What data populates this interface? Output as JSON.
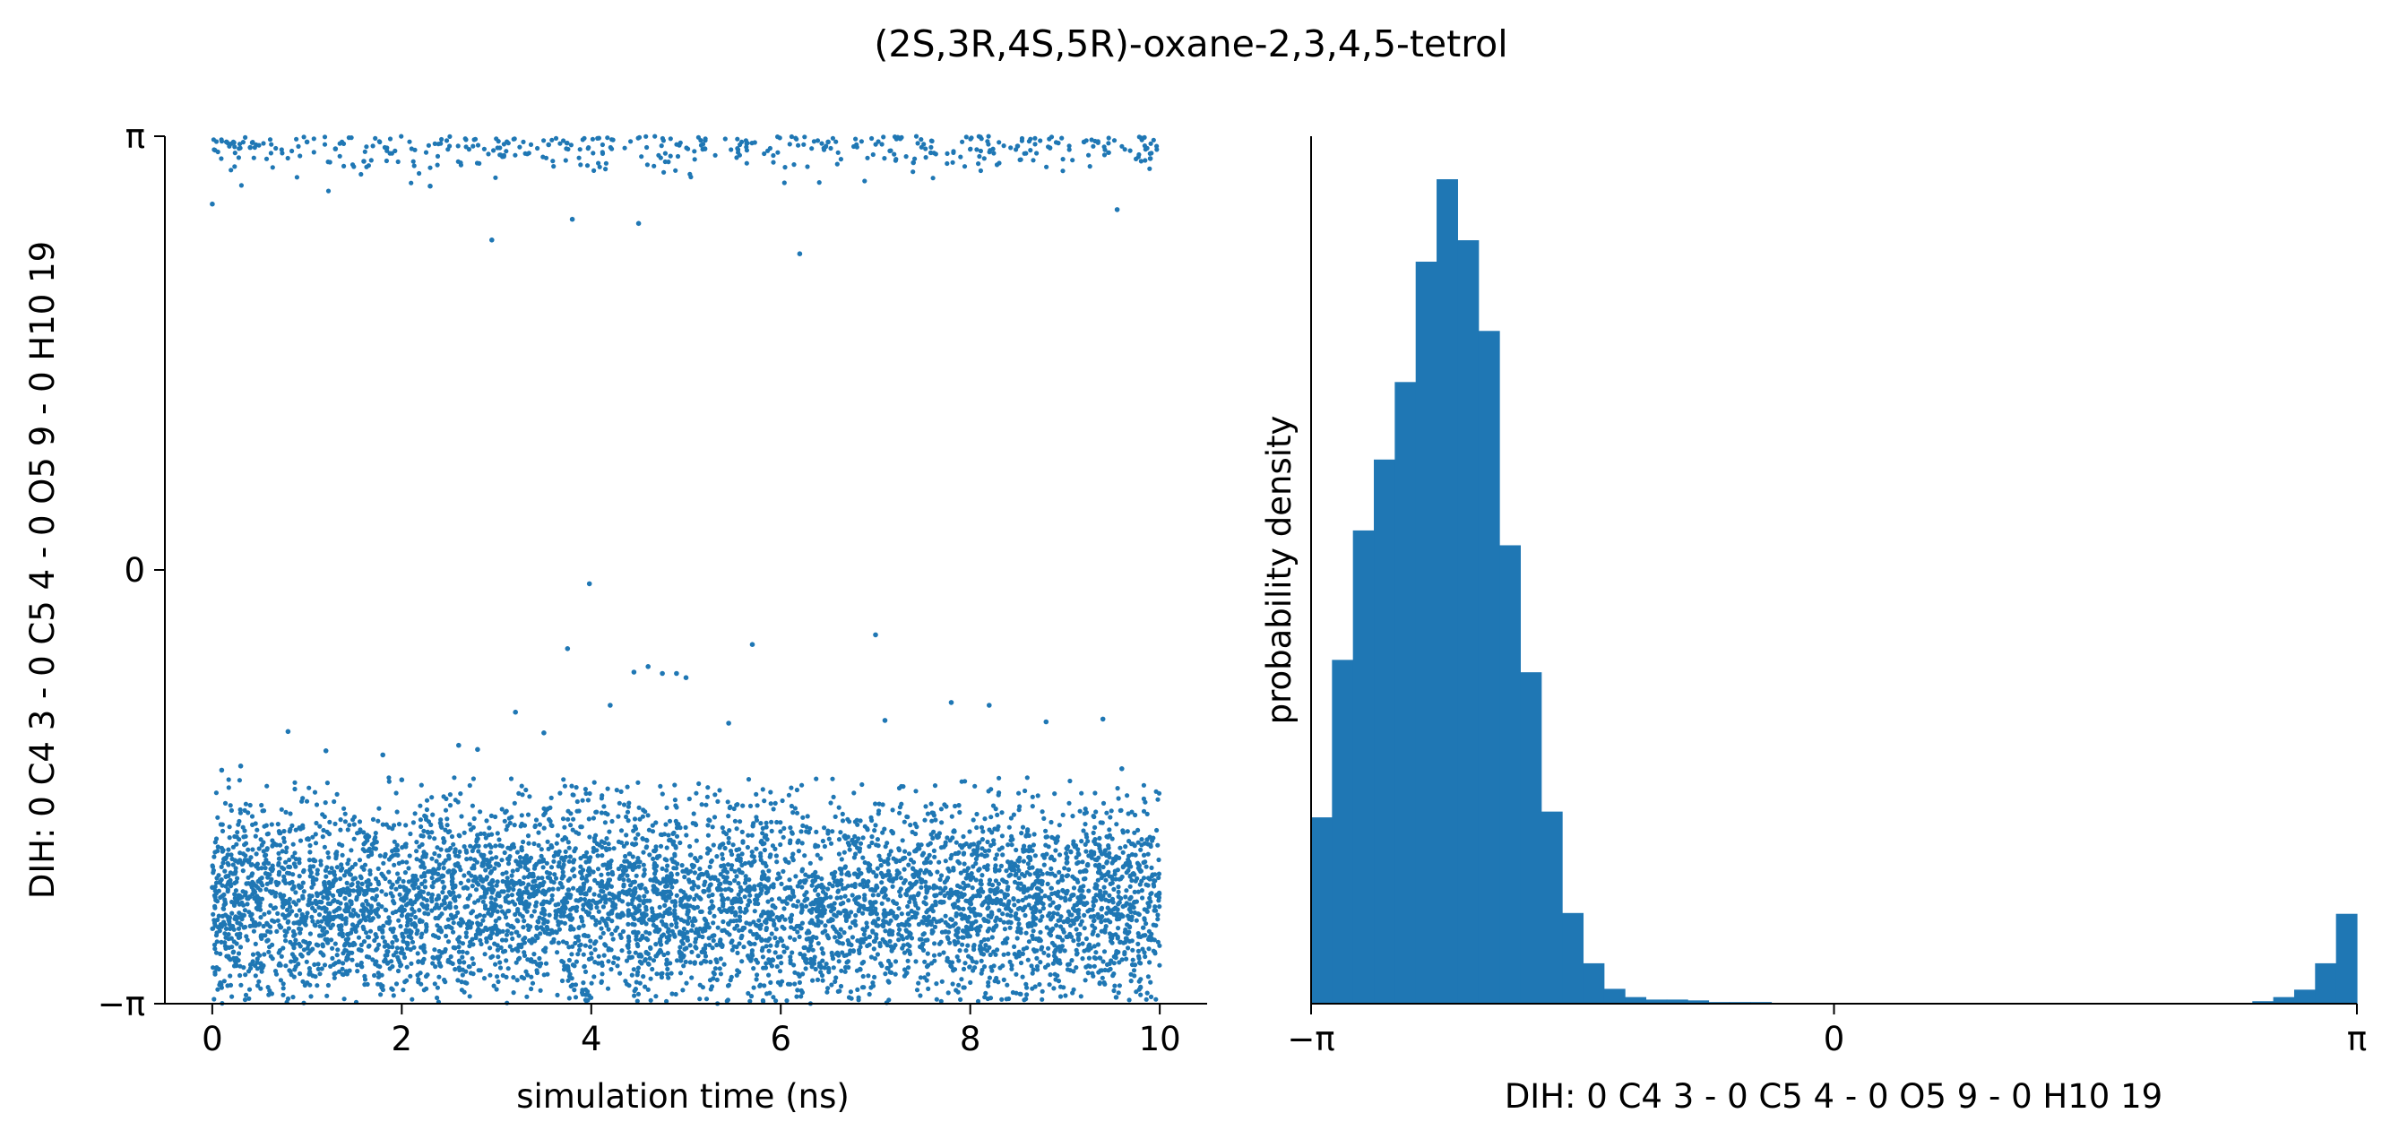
{
  "figure": {
    "title": "(2S,3R,4S,5R)-oxane-2,3,4,5-tetrol",
    "accent_color": "#1f77b4",
    "axis_color": "#000000"
  },
  "chart_data": [
    {
      "type": "scatter",
      "xlabel": "simulation time (ns)",
      "ylabel": "DIH:  0 C4 3 -  0 C5 4 -  0 O5 9 -  0 H10 19",
      "xlim": [
        -0.5,
        10.5
      ],
      "ylim": [
        -3.14159,
        3.14159
      ],
      "x_ticks": [
        0,
        2,
        4,
        6,
        8,
        10
      ],
      "x_tick_labels": [
        "0",
        "2",
        "4",
        "6",
        "8",
        "10"
      ],
      "y_ticks": [
        -3.14159,
        0,
        3.14159
      ],
      "y_tick_labels": [
        "−π",
        "0",
        "π"
      ],
      "grid": false,
      "series": [
        {
          "color": "#1f77b4",
          "points_sampled": [
            [
              0.0,
              -2.3
            ],
            [
              0.0,
              2.65
            ],
            [
              0.1,
              -1.45
            ],
            [
              0.15,
              3.1
            ],
            [
              0.3,
              -1.42
            ],
            [
              0.4,
              3.06
            ],
            [
              0.8,
              -1.17
            ],
            [
              1.0,
              3.1
            ],
            [
              1.2,
              -1.31
            ],
            [
              1.3,
              3.05
            ],
            [
              1.6,
              2.96
            ],
            [
              1.8,
              -1.34
            ],
            [
              2.0,
              -1.52
            ],
            [
              2.3,
              2.78
            ],
            [
              2.6,
              -1.27
            ],
            [
              2.8,
              -1.3
            ],
            [
              2.95,
              2.39
            ],
            [
              3.2,
              -1.03
            ],
            [
              3.5,
              -1.18
            ],
            [
              3.55,
              3.08
            ],
            [
              3.75,
              -0.57
            ],
            [
              3.8,
              2.54
            ],
            [
              3.98,
              -0.1
            ],
            [
              4.2,
              -0.98
            ],
            [
              4.45,
              -0.74
            ],
            [
              4.5,
              2.51
            ],
            [
              4.6,
              -0.7
            ],
            [
              4.75,
              -0.75
            ],
            [
              4.9,
              -0.75
            ],
            [
              5.0,
              -0.78
            ],
            [
              5.2,
              3.05
            ],
            [
              5.45,
              -1.11
            ],
            [
              5.7,
              -0.54
            ],
            [
              6.2,
              2.29
            ],
            [
              6.5,
              3.1
            ],
            [
              7.0,
              -0.47
            ],
            [
              7.1,
              -1.09
            ],
            [
              7.4,
              2.95
            ],
            [
              7.8,
              -0.96
            ],
            [
              8.2,
              -0.98
            ],
            [
              8.5,
              3.07
            ],
            [
              8.8,
              -1.1
            ],
            [
              9.2,
              3.1
            ],
            [
              9.4,
              -1.08
            ],
            [
              9.55,
              2.61
            ],
            [
              9.6,
              -1.44
            ],
            [
              9.9,
              2.98
            ]
          ],
          "main_band": {
            "x_range": [
              0,
              10
            ],
            "y_mean": -2.42,
            "y_spread_approx": 0.38,
            "y_min": -3.14159,
            "y_max": -1.5
          },
          "note_points": "dense band of ~10000 samples between -π and about -1.5 rad; sparse points near +π"
        }
      ]
    },
    {
      "type": "histogram",
      "xlabel": "DIH:  0 C4 3 -  0 C5 4 -  0 O5 9 -  0 H10 19",
      "ylabel": "probability density",
      "xlim": [
        -3.14159,
        3.14159
      ],
      "x_ticks": [
        -3.14159,
        0,
        3.14159
      ],
      "x_tick_labels": [
        "−π",
        "0",
        "π"
      ],
      "grid": false,
      "bins": 50,
      "values": [
        0.226,
        0.417,
        0.574,
        0.66,
        0.754,
        0.9,
        1.0,
        0.926,
        0.816,
        0.556,
        0.402,
        0.233,
        0.11,
        0.049,
        0.018,
        0.008,
        0.005,
        0.005,
        0.004,
        0.002,
        0.002,
        0.002,
        0.001,
        0.001,
        0.001,
        0.001,
        0.001,
        0.001,
        0.001,
        0.001,
        0.001,
        0.001,
        0.001,
        0.001,
        0.001,
        0.001,
        0.001,
        0.001,
        0.001,
        0.001,
        0.001,
        0.001,
        0.001,
        0.001,
        0.001,
        0.003,
        0.008,
        0.017,
        0.049,
        0.109
      ],
      "color": "#1f77b4"
    }
  ]
}
